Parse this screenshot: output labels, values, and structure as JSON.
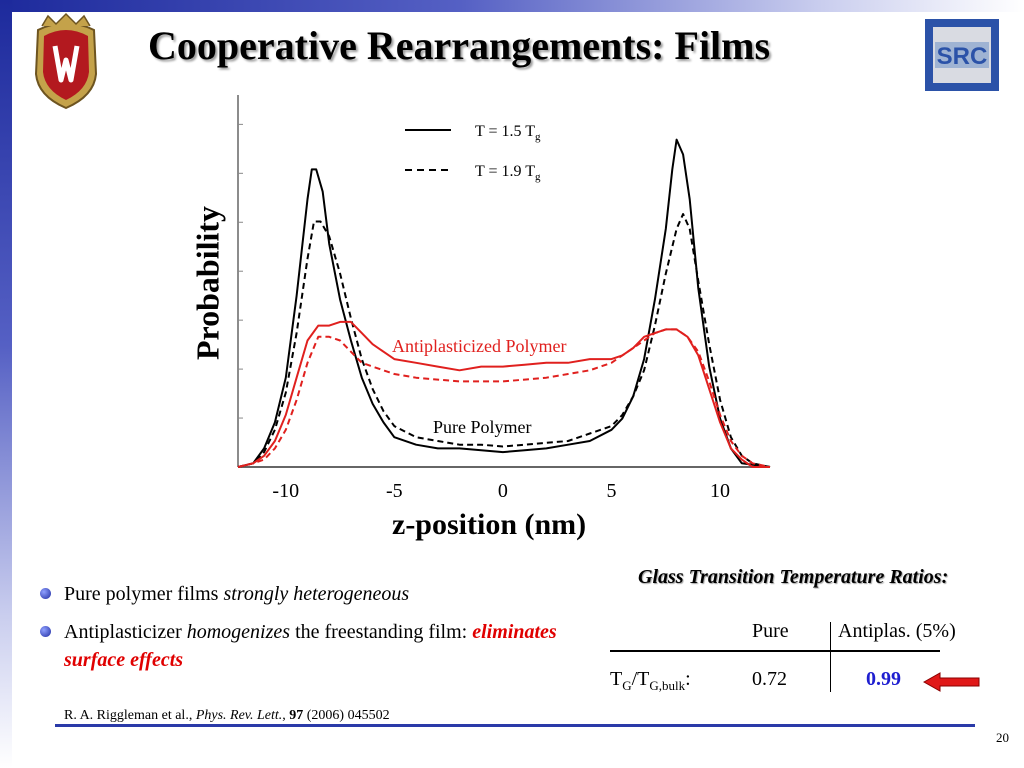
{
  "slide": {
    "title": "Cooperative Rearrangements: Films",
    "page_number": "20"
  },
  "chart_data": {
    "type": "line",
    "xlabel": "z-position (nm)",
    "ylabel": "Probability",
    "xlim": [
      -12.2,
      12.3
    ],
    "ylim": [
      0,
      1.0
    ],
    "xticks": [
      "-10",
      "-5",
      "0",
      "5",
      "10"
    ],
    "legend": {
      "placement": "top-center",
      "solid_prefix": "T = 1.5 T",
      "solid_sub": "g",
      "dashed_prefix": "T = 1.9 T",
      "dashed_sub": "g"
    },
    "annotations": {
      "antiplasticized": "Antiplasticized Polymer",
      "pure": "Pure Polymer"
    },
    "colors": {
      "pure": "#000000",
      "antiplasticized": "#e0201e"
    },
    "series": [
      {
        "style": "solid",
        "color": "#000000",
        "x": [
          -12.2,
          -11.5,
          -11.0,
          -10.5,
          -10.0,
          -9.5,
          -9.0,
          -8.8,
          -8.6,
          -8.3,
          -8.0,
          -7.5,
          -7.0,
          -6.5,
          -6.0,
          -5.5,
          -5.0,
          -4.0,
          -3.0,
          -2.0,
          -1.0,
          0.0,
          1.0,
          2.0,
          3.0,
          4.0,
          5.0,
          5.5,
          6.0,
          6.5,
          7.0,
          7.5,
          7.8,
          8.0,
          8.3,
          8.6,
          9.0,
          9.5,
          10.0,
          10.5,
          11.0,
          12.3
        ],
        "y": [
          0.0,
          0.01,
          0.05,
          0.12,
          0.24,
          0.46,
          0.72,
          0.8,
          0.8,
          0.74,
          0.6,
          0.45,
          0.34,
          0.24,
          0.17,
          0.12,
          0.08,
          0.06,
          0.05,
          0.05,
          0.045,
          0.04,
          0.045,
          0.05,
          0.06,
          0.07,
          0.1,
          0.13,
          0.19,
          0.29,
          0.45,
          0.64,
          0.8,
          0.88,
          0.84,
          0.72,
          0.48,
          0.27,
          0.13,
          0.05,
          0.01,
          0.0
        ]
      },
      {
        "style": "dashed",
        "color": "#000000",
        "x": [
          -12.2,
          -11.5,
          -11.0,
          -10.5,
          -10.0,
          -9.5,
          -9.0,
          -8.7,
          -8.4,
          -8.0,
          -7.5,
          -7.0,
          -6.5,
          -6.0,
          -5.5,
          -5.0,
          -4.0,
          -3.0,
          -2.0,
          -1.0,
          0.0,
          1.0,
          2.0,
          3.0,
          4.0,
          5.0,
          5.5,
          6.0,
          6.5,
          7.0,
          7.5,
          8.0,
          8.3,
          8.6,
          9.0,
          9.5,
          10.0,
          10.5,
          11.0,
          11.5,
          12.3
        ],
        "y": [
          0.0,
          0.01,
          0.04,
          0.1,
          0.2,
          0.36,
          0.56,
          0.66,
          0.66,
          0.62,
          0.52,
          0.4,
          0.29,
          0.21,
          0.15,
          0.11,
          0.08,
          0.07,
          0.06,
          0.06,
          0.055,
          0.06,
          0.065,
          0.07,
          0.09,
          0.11,
          0.14,
          0.19,
          0.26,
          0.38,
          0.52,
          0.64,
          0.68,
          0.64,
          0.5,
          0.33,
          0.18,
          0.08,
          0.03,
          0.01,
          0.0
        ]
      },
      {
        "style": "solid",
        "color": "#e0201e",
        "x": [
          -12.2,
          -11.5,
          -11.0,
          -10.5,
          -10.0,
          -9.5,
          -9.0,
          -8.5,
          -8.0,
          -7.5,
          -7.0,
          -6.5,
          -6.0,
          -5.5,
          -5.0,
          -4.0,
          -3.0,
          -2.0,
          -1.0,
          0.0,
          1.0,
          2.0,
          3.0,
          4.0,
          5.0,
          5.5,
          6.0,
          6.5,
          7.0,
          7.5,
          8.0,
          8.5,
          9.0,
          9.5,
          10.0,
          10.5,
          11.0,
          11.5,
          12.3
        ],
        "y": [
          0.0,
          0.01,
          0.03,
          0.07,
          0.14,
          0.24,
          0.34,
          0.38,
          0.38,
          0.39,
          0.39,
          0.36,
          0.33,
          0.31,
          0.29,
          0.28,
          0.27,
          0.26,
          0.27,
          0.27,
          0.275,
          0.28,
          0.28,
          0.29,
          0.29,
          0.3,
          0.32,
          0.35,
          0.36,
          0.37,
          0.37,
          0.35,
          0.3,
          0.21,
          0.12,
          0.05,
          0.02,
          0.0,
          0.0
        ]
      },
      {
        "style": "dashed",
        "color": "#e0201e",
        "x": [
          -12.2,
          -11.5,
          -11.0,
          -10.5,
          -10.0,
          -9.5,
          -9.0,
          -8.5,
          -8.0,
          -7.5,
          -7.0,
          -6.5,
          -6.0,
          -5.0,
          -4.0,
          -3.0,
          -2.0,
          -1.0,
          0.0,
          1.0,
          2.0,
          3.0,
          4.0,
          5.0,
          5.5,
          6.0,
          6.5,
          7.0,
          7.5,
          8.0,
          8.5,
          9.0,
          9.5,
          10.0,
          10.5,
          11.0,
          11.5,
          12.3
        ],
        "y": [
          0.0,
          0.01,
          0.02,
          0.05,
          0.1,
          0.18,
          0.28,
          0.35,
          0.35,
          0.34,
          0.31,
          0.28,
          0.27,
          0.25,
          0.24,
          0.235,
          0.23,
          0.23,
          0.23,
          0.235,
          0.24,
          0.25,
          0.26,
          0.28,
          0.3,
          0.32,
          0.34,
          0.36,
          0.37,
          0.37,
          0.35,
          0.31,
          0.23,
          0.14,
          0.07,
          0.03,
          0.01,
          0.0
        ]
      }
    ]
  },
  "bullets": [
    {
      "text": "Pure polymer films ",
      "em": "strongly heterogeneous"
    },
    {
      "text": "Antiplasticizer ",
      "em": "homogenizes",
      "text2": " the freestanding film: ",
      "em_red": "eliminates surface effects"
    }
  ],
  "reference": {
    "authors": "R. A. Riggleman et al., ",
    "journal": "Phys. Rev. Lett.",
    "sep": ", ",
    "volume": "97",
    "rest": " (2006) 045502"
  },
  "ratio_table": {
    "title": "Glass Transition Temperature Ratios:",
    "col_pure": "Pure",
    "col_antiplas": "Antiplas. (5%)",
    "row_label_t1": "T",
    "row_label_s1": "G",
    "row_label_t2": "/T",
    "row_label_s2": "G,bulk",
    "row_label_t3": ":",
    "pure_value": "0.72",
    "antiplas_value": "0.99"
  },
  "icons": [
    "wisconsin-crest-icon",
    "src-logo-icon",
    "bullet-dot-icon",
    "red-arrow-icon"
  ]
}
